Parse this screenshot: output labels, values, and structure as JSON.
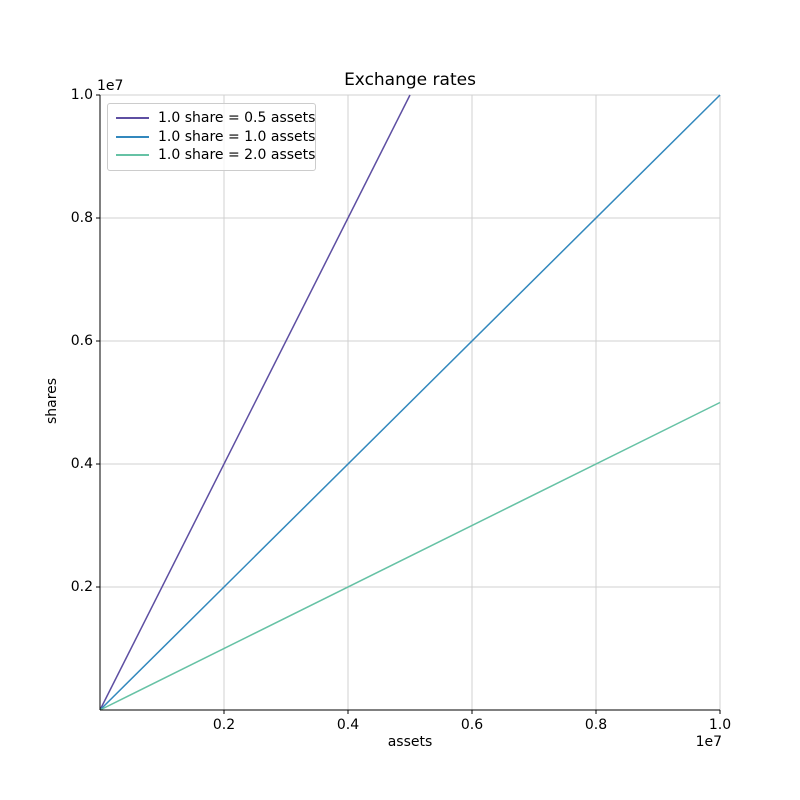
{
  "chart_data": {
    "type": "line",
    "title": "Exchange rates",
    "xlabel": "assets",
    "ylabel": "shares",
    "offset_text": "1e7",
    "xlim": [
      0,
      10000000
    ],
    "ylim": [
      0,
      10000000
    ],
    "x_ticks": [
      2000000,
      4000000,
      6000000,
      8000000,
      10000000
    ],
    "x_tick_labels": [
      "0.2",
      "0.4",
      "0.6",
      "0.8",
      "1.0"
    ],
    "y_ticks": [
      2000000,
      4000000,
      6000000,
      8000000,
      10000000
    ],
    "y_tick_labels": [
      "0.2",
      "0.4",
      "0.6",
      "0.8",
      "1.0"
    ],
    "grid": true,
    "legend_position": "upper left",
    "series": [
      {
        "name": "1.0 share = 0.5 assets",
        "color": "#5e4fa2",
        "slope": 2.0,
        "points": [
          [
            0,
            0
          ],
          [
            5000000,
            10000000
          ]
        ]
      },
      {
        "name": "1.0 share = 1.0 assets",
        "color": "#3288bd",
        "slope": 1.0,
        "points": [
          [
            0,
            0
          ],
          [
            10000000,
            10000000
          ]
        ]
      },
      {
        "name": "1.0 share = 2.0 assets",
        "color": "#66c2a5",
        "slope": 0.5,
        "points": [
          [
            0,
            0
          ],
          [
            10000000,
            5000000
          ]
        ]
      }
    ],
    "colors": {
      "grid": "#d0d0d0",
      "spine": "#000000",
      "text": "#000000",
      "legend_border": "#cccccc"
    }
  }
}
